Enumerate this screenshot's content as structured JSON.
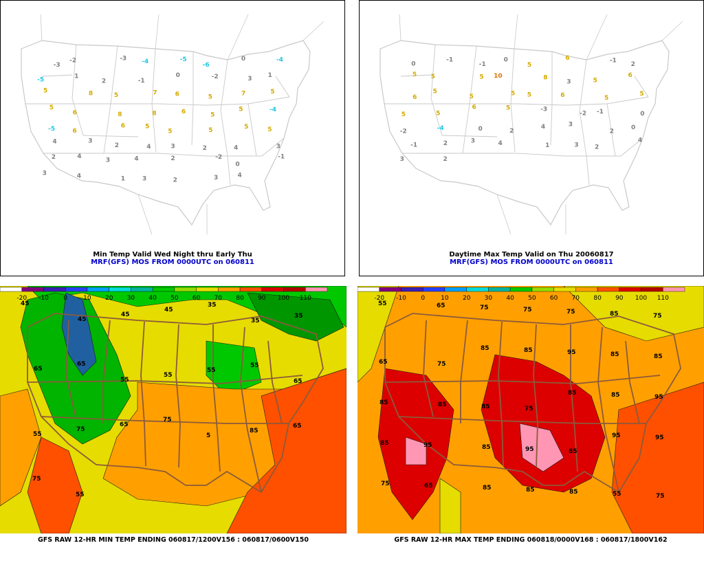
{
  "colors": {
    "border": "#c8c8c8",
    "warm_label": "#d4aa00",
    "hot_label": "#e07000",
    "cold_label": "#20c8e0",
    "plain_label": "#808080",
    "state_lines": "#8c5a3c",
    "contour": "#1a1a1a"
  },
  "panels": {
    "top_left": {
      "caption_line1": "Min Temp Valid Wed Night thru Early Thu",
      "caption_line2": "MRF(GFS) MOS FROM 0000UTC on 060811",
      "labels": [
        {
          "t": "-3",
          "c": "p"
        },
        {
          "t": "-2",
          "c": "p"
        },
        {
          "t": "-3",
          "c": "p"
        },
        {
          "t": "-4",
          "c": "c"
        },
        {
          "t": "-5",
          "c": "c"
        },
        {
          "t": "-6",
          "c": "c"
        },
        {
          "t": "0",
          "c": "p"
        },
        {
          "t": "-4",
          "c": "c"
        },
        {
          "t": "-5",
          "c": "c"
        },
        {
          "t": "1",
          "c": "p"
        },
        {
          "t": "2",
          "c": "p"
        },
        {
          "t": "-1",
          "c": "p"
        },
        {
          "t": "0",
          "c": "p"
        },
        {
          "t": "-2",
          "c": "p"
        },
        {
          "t": "3",
          "c": "p"
        },
        {
          "t": "1",
          "c": "p"
        },
        {
          "t": "5",
          "c": "w"
        },
        {
          "t": "8",
          "c": "w"
        },
        {
          "t": "5",
          "c": "w"
        },
        {
          "t": "7",
          "c": "w"
        },
        {
          "t": "6",
          "c": "w"
        },
        {
          "t": "5",
          "c": "w"
        },
        {
          "t": "7",
          "c": "w"
        },
        {
          "t": "5",
          "c": "w"
        },
        {
          "t": "5",
          "c": "w"
        },
        {
          "t": "6",
          "c": "w"
        },
        {
          "t": "8",
          "c": "w"
        },
        {
          "t": "8",
          "c": "w"
        },
        {
          "t": "6",
          "c": "w"
        },
        {
          "t": "5",
          "c": "w"
        },
        {
          "t": "5",
          "c": "w"
        },
        {
          "t": "-4",
          "c": "c"
        },
        {
          "t": "-5",
          "c": "c"
        },
        {
          "t": "6",
          "c": "w"
        },
        {
          "t": "6",
          "c": "w"
        },
        {
          "t": "5",
          "c": "w"
        },
        {
          "t": "5",
          "c": "w"
        },
        {
          "t": "5",
          "c": "w"
        },
        {
          "t": "5",
          "c": "w"
        },
        {
          "t": "5",
          "c": "w"
        },
        {
          "t": "4",
          "c": "p"
        },
        {
          "t": "3",
          "c": "p"
        },
        {
          "t": "2",
          "c": "p"
        },
        {
          "t": "4",
          "c": "p"
        },
        {
          "t": "3",
          "c": "p"
        },
        {
          "t": "2",
          "c": "p"
        },
        {
          "t": "4",
          "c": "p"
        },
        {
          "t": "3",
          "c": "p"
        },
        {
          "t": "2",
          "c": "p"
        },
        {
          "t": "4",
          "c": "p"
        },
        {
          "t": "3",
          "c": "p"
        },
        {
          "t": "4",
          "c": "p"
        },
        {
          "t": "2",
          "c": "p"
        },
        {
          "t": "-2",
          "c": "p"
        },
        {
          "t": "0",
          "c": "p"
        },
        {
          "t": "-1",
          "c": "p"
        },
        {
          "t": "3",
          "c": "p"
        },
        {
          "t": "4",
          "c": "p"
        },
        {
          "t": "1",
          "c": "p"
        },
        {
          "t": "3",
          "c": "p"
        },
        {
          "t": "2",
          "c": "p"
        },
        {
          "t": "3",
          "c": "p"
        },
        {
          "t": "4",
          "c": "p"
        }
      ]
    },
    "top_right": {
      "caption_line1": "Daytime Max Temp Valid on Thu 20060817",
      "caption_line2": "MRF(GFS) MOS FROM 0000UTC on 060811",
      "labels": [
        {
          "t": "0",
          "c": "p"
        },
        {
          "t": "-1",
          "c": "p"
        },
        {
          "t": "-1",
          "c": "p"
        },
        {
          "t": "0",
          "c": "p"
        },
        {
          "t": "5",
          "c": "w"
        },
        {
          "t": "6",
          "c": "w"
        },
        {
          "t": "-1",
          "c": "p"
        },
        {
          "t": "2",
          "c": "p"
        },
        {
          "t": "5",
          "c": "w"
        },
        {
          "t": "5",
          "c": "w"
        },
        {
          "t": "5",
          "c": "w"
        },
        {
          "t": "10",
          "c": "h"
        },
        {
          "t": "8",
          "c": "w"
        },
        {
          "t": "3",
          "c": "p"
        },
        {
          "t": "5",
          "c": "w"
        },
        {
          "t": "6",
          "c": "w"
        },
        {
          "t": "6",
          "c": "w"
        },
        {
          "t": "5",
          "c": "w"
        },
        {
          "t": "5",
          "c": "w"
        },
        {
          "t": "5",
          "c": "w"
        },
        {
          "t": "5",
          "c": "w"
        },
        {
          "t": "6",
          "c": "w"
        },
        {
          "t": "5",
          "c": "w"
        },
        {
          "t": "5",
          "c": "w"
        },
        {
          "t": "5",
          "c": "w"
        },
        {
          "t": "5",
          "c": "w"
        },
        {
          "t": "6",
          "c": "w"
        },
        {
          "t": "5",
          "c": "w"
        },
        {
          "t": "-3",
          "c": "p"
        },
        {
          "t": "-2",
          "c": "p"
        },
        {
          "t": "-1",
          "c": "p"
        },
        {
          "t": "0",
          "c": "p"
        },
        {
          "t": "-2",
          "c": "p"
        },
        {
          "t": "-4",
          "c": "c"
        },
        {
          "t": "0",
          "c": "p"
        },
        {
          "t": "2",
          "c": "p"
        },
        {
          "t": "4",
          "c": "p"
        },
        {
          "t": "3",
          "c": "p"
        },
        {
          "t": "2",
          "c": "p"
        },
        {
          "t": "0",
          "c": "p"
        },
        {
          "t": "-1",
          "c": "p"
        },
        {
          "t": "2",
          "c": "p"
        },
        {
          "t": "3",
          "c": "p"
        },
        {
          "t": "4",
          "c": "p"
        },
        {
          "t": "1",
          "c": "p"
        },
        {
          "t": "3",
          "c": "p"
        },
        {
          "t": "2",
          "c": "p"
        },
        {
          "t": "4",
          "c": "p"
        },
        {
          "t": "3",
          "c": "p"
        },
        {
          "t": "2",
          "c": "p"
        }
      ]
    },
    "bottom_left": {
      "title": "GFS RAW 12-HR MIN TEMP ENDING 060817/1200V156 : 060817/0600V150",
      "labels": [
        "45",
        "45",
        "45",
        "45",
        "35",
        "35",
        "35",
        "65",
        "65",
        "55",
        "55",
        "55",
        "55",
        "65",
        "55",
        "75",
        "65",
        "75",
        "5",
        "85",
        "65",
        "75",
        "55"
      ]
    },
    "bottom_right": {
      "title": "GFS RAW 12-HR MAX TEMP ENDING 060818/0000V168 : 060817/1800V162",
      "labels": [
        "55",
        "65",
        "75",
        "75",
        "75",
        "85",
        "75",
        "65",
        "75",
        "85",
        "85",
        "95",
        "85",
        "85",
        "85",
        "85",
        "85",
        "75",
        "85",
        "85",
        "95",
        "85",
        "95",
        "85",
        "95",
        "85",
        "95",
        "95",
        "75",
        "65",
        "85",
        "85",
        "85",
        "55",
        "75"
      ]
    }
  },
  "scale": {
    "ticks": [
      "-20",
      "-10",
      "0",
      "10",
      "20",
      "30",
      "40",
      "50",
      "60",
      "70",
      "80",
      "90",
      "100",
      "110"
    ],
    "colors": [
      "#ffffff",
      "#800080",
      "#3c1fb4",
      "#2840ff",
      "#00a0ff",
      "#00dcdc",
      "#00b4a0",
      "#00c800",
      "#96dc00",
      "#e6dc00",
      "#ffa000",
      "#ff5000",
      "#dc0000",
      "#b40000",
      "#ff96b4"
    ]
  }
}
